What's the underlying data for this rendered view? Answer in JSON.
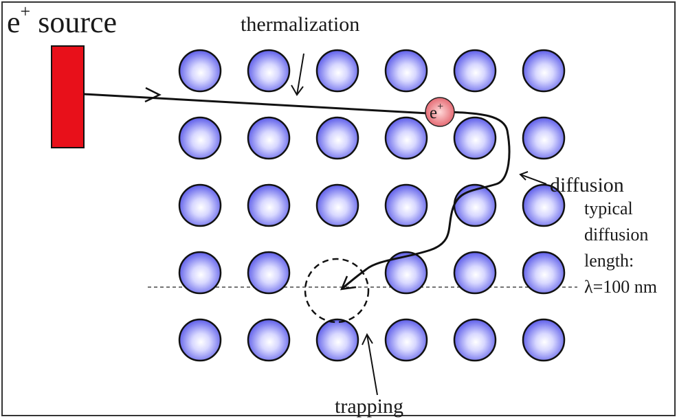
{
  "labels": {
    "source_main": "e",
    "source_sup": "+",
    "source_word": " source",
    "thermalization": "thermalization",
    "positron_main": "e",
    "positron_sup": "+",
    "diffusion": "diffusion",
    "length_line1": "typical",
    "length_line2": "diffusion",
    "length_line3": "length:",
    "length_line4": "λ=100 nm",
    "trapping": "trapping"
  },
  "lattice": {
    "rows": 5,
    "columns": 6
  },
  "colors": {
    "source": "#e8101a",
    "atom_center": "#ffffff",
    "atom_edge": "#4a4ae6",
    "positron_center": "#ffd9d9",
    "positron_edge": "#e05560",
    "ink": "#111111"
  },
  "icons": {
    "track": "arrow-path",
    "vacancy": "dashed-circle"
  }
}
